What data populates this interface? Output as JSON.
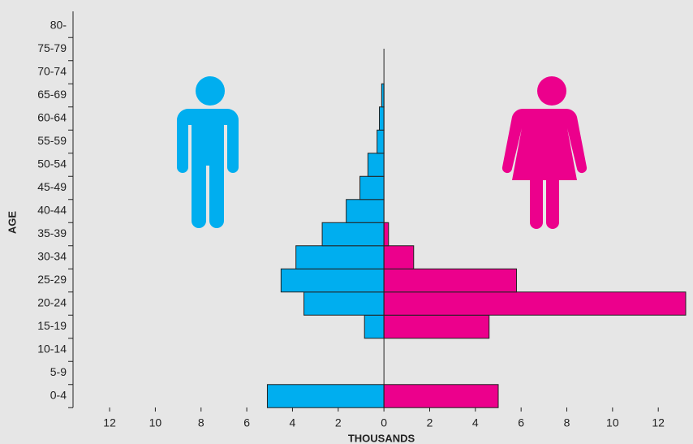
{
  "chart_data": {
    "type": "population-pyramid",
    "categories": [
      "0-4",
      "5-9",
      "10-14",
      "15-19",
      "20-24",
      "25-29",
      "30-34",
      "35-39",
      "40-44",
      "45-49",
      "50-54",
      "55-59",
      "60-64",
      "65-69",
      "70-74",
      "75-79",
      "80-"
    ],
    "series": [
      {
        "side": "left",
        "color": "#00aeef",
        "values": [
          5.1,
          0,
          0,
          0.85,
          3.5,
          4.5,
          3.85,
          2.7,
          1.65,
          1.05,
          0.7,
          0.3,
          0.2,
          0.1,
          0,
          0,
          0
        ]
      },
      {
        "side": "right",
        "color": "#ec008c",
        "values": [
          5.0,
          0,
          0,
          4.6,
          13.2,
          5.8,
          1.3,
          0.2,
          0,
          0,
          0,
          0,
          0,
          0,
          0,
          0,
          0
        ]
      }
    ],
    "xlabel": "THOUSANDS",
    "ylabel": "AGE",
    "xlim": [
      -13.6,
      13.2
    ],
    "xticks": [
      {
        "value": -12,
        "label": "12"
      },
      {
        "value": -10,
        "label": "10"
      },
      {
        "value": -8,
        "label": "8"
      },
      {
        "value": -6,
        "label": "6"
      },
      {
        "value": -4,
        "label": "4"
      },
      {
        "value": -2,
        "label": "2"
      },
      0,
      2,
      4,
      6,
      8,
      10,
      12
    ]
  }
}
